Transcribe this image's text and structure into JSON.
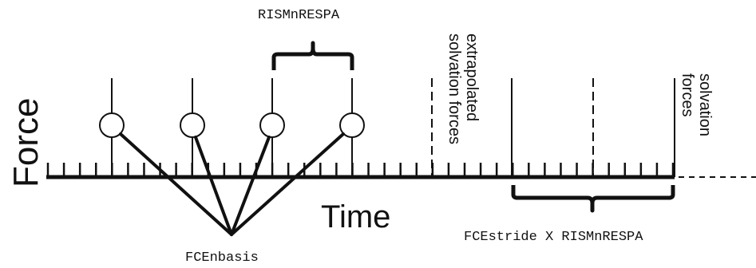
{
  "labels": {
    "top": "RISMnRESPA",
    "y_axis": "Force",
    "x_axis": "Time",
    "basis": "FCEnbasis",
    "stride": "FCEstride X RISMnRESPA",
    "extrapolated_line1": "extrapolated",
    "extrapolated_line2": "solvation forces",
    "solvation_line1": "solvation",
    "solvation_line2": "forces"
  },
  "colors": {
    "ink": "#111111",
    "background": "#ffffff"
  }
}
